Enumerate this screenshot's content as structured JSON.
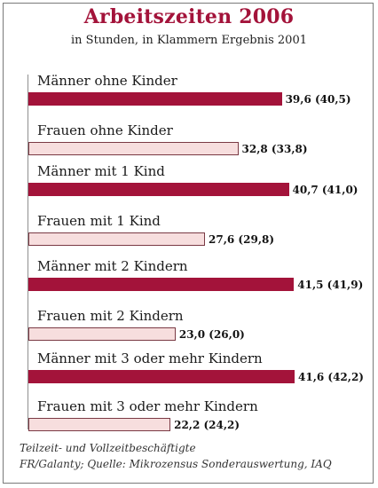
{
  "chart_data": {
    "type": "bar",
    "orientation": "horizontal",
    "title": "Arbeitszeiten 2006",
    "subtitle": "in Stunden, in Klammern Ergebnis 2001",
    "categories": [
      "Männer ohne Kinder",
      "Frauen ohne Kinder",
      "Männer mit 1 Kind",
      "Frauen mit 1 Kind",
      "Männer mit 2 Kindern",
      "Frauen mit 2 Kindern",
      "Männer mit 3 oder mehr Kindern",
      "Frauen mit 3 oder mehr Kindern"
    ],
    "values": [
      39.6,
      32.8,
      40.7,
      27.6,
      41.5,
      23.0,
      41.6,
      22.2
    ],
    "values_2001": [
      40.5,
      33.8,
      41.0,
      29.8,
      41.9,
      26.0,
      42.2,
      24.2
    ],
    "labels": [
      "39,6 (40,5)",
      "32,8 (33,8)",
      "40,7 (41,0)",
      "27,6 (29,8)",
      "41,5 (41,9)",
      "23,0 (26,0)",
      "41,6 (42,2)",
      "22,2 (24,2)"
    ],
    "gender": [
      "men",
      "women",
      "men",
      "women",
      "men",
      "women",
      "men",
      "women"
    ],
    "xlim": [
      0,
      41.6
    ],
    "colors": {
      "men": "#a3133a",
      "women": "#f7dede",
      "women_border": "#7a3a44"
    },
    "footnote": [
      "Teilzeit- und Vollzeitbeschäftigte",
      "FR/Galanty; Quelle: Mikrozensus Sonderauswertung, IAQ"
    ]
  }
}
